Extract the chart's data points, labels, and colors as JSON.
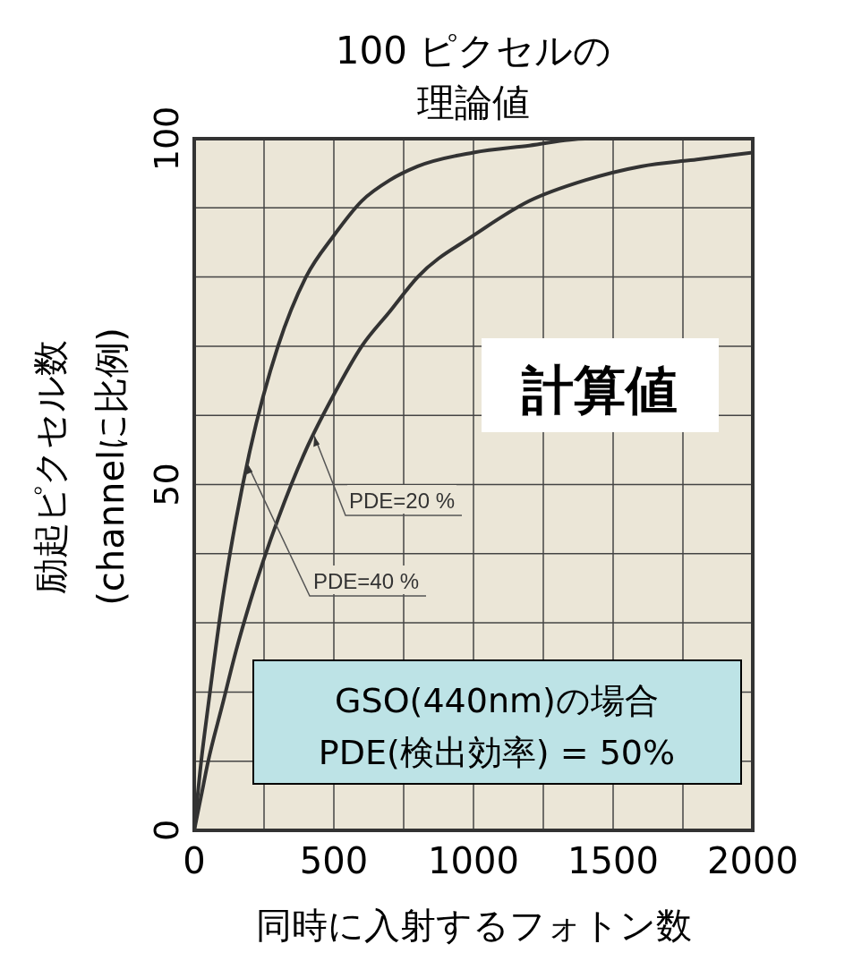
{
  "chart_data": {
    "type": "line",
    "title": "100 ピクセルの理論値",
    "xlabel": "同時に入射するフォトン数",
    "ylabel": "励起ピクセル数\n(channelに比例)",
    "x": [
      0,
      25,
      50,
      100,
      150,
      200,
      300,
      400,
      500,
      600,
      700,
      800,
      1000,
      1200,
      1400,
      1600,
      1800,
      2000
    ],
    "series": [
      {
        "color": "#333333",
        "values": [
          0,
          10,
          18,
          33,
          45,
          55,
          70,
          80,
          86,
          91,
          94,
          96,
          98,
          99,
          100,
          100,
          100,
          100
        ]
      },
      {
        "color": "#333333",
        "values": [
          0,
          5,
          10,
          18,
          26,
          33,
          45,
          55,
          63,
          70,
          75,
          80,
          86,
          91,
          94,
          96,
          97,
          98
        ]
      }
    ],
    "xlim": [
      0,
      2000
    ],
    "xticks": [
      0,
      {
        "value": 250,
        "label": null
      },
      500,
      {
        "value": 750,
        "label": null
      },
      1000,
      {
        "value": 1250,
        "label": null
      },
      1500,
      {
        "value": 1750,
        "label": null
      },
      2000
    ],
    "ylim": [
      0,
      100
    ],
    "yticks": [
      0,
      {
        "value": 10,
        "label": null
      },
      {
        "value": 20,
        "label": null
      },
      {
        "value": 30,
        "label": null
      },
      {
        "value": 40,
        "label": null
      },
      50,
      {
        "value": 60,
        "label": null
      },
      {
        "value": 70,
        "label": null
      },
      {
        "value": 80,
        "label": null
      },
      {
        "value": 90,
        "label": null
      },
      100
    ],
    "grid": true,
    "line_style": "solid",
    "annotations": [
      {
        "text": "PDE=20 %",
        "x": 430,
        "y": 57
      },
      {
        "text": "PDE=40 %",
        "x": 190,
        "y": 53
      },
      "計算値",
      "GSO(440nm)の場合\nPDE(検出効率) = 50%"
    ]
  }
}
